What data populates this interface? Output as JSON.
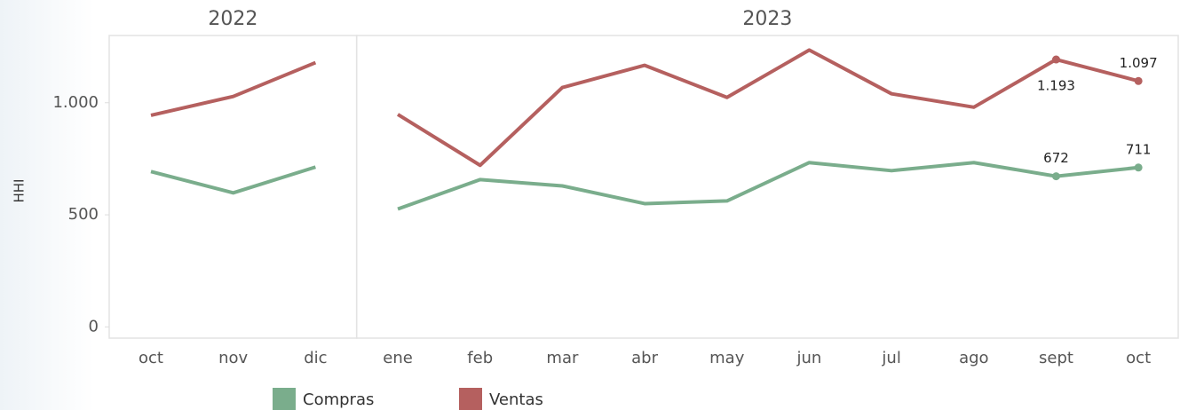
{
  "chart_data": {
    "type": "line",
    "ylabel": "HHI",
    "groups": [
      {
        "label": "2022",
        "categories": [
          "oct",
          "nov",
          "dic"
        ]
      },
      {
        "label": "2023",
        "categories": [
          "ene",
          "feb",
          "mar",
          "abr",
          "may",
          "jun",
          "jul",
          "ago",
          "sept",
          "oct"
        ]
      }
    ],
    "series": [
      {
        "name": "Compras",
        "color": "#7aad8c",
        "values": [
          693,
          598,
          713,
          526,
          657,
          629,
          550,
          562,
          733,
          697,
          733,
          672,
          711
        ],
        "value_labels": [
          null,
          null,
          null,
          null,
          null,
          null,
          null,
          null,
          null,
          null,
          null,
          "672",
          "711"
        ]
      },
      {
        "name": "Ventas",
        "color": "#b5605f",
        "values": [
          944,
          1028,
          1179,
          948,
          721,
          1068,
          1167,
          1024,
          1235,
          1040,
          980,
          1193,
          1097
        ],
        "value_labels": [
          null,
          null,
          null,
          null,
          null,
          null,
          null,
          null,
          null,
          null,
          null,
          "1.193",
          "1.097"
        ]
      }
    ],
    "ylim": [
      -50,
      1300
    ],
    "yticks": [
      0,
      500,
      {
        "value": 1000,
        "label": "1.000"
      }
    ],
    "grid": false,
    "legend": "bottom"
  }
}
